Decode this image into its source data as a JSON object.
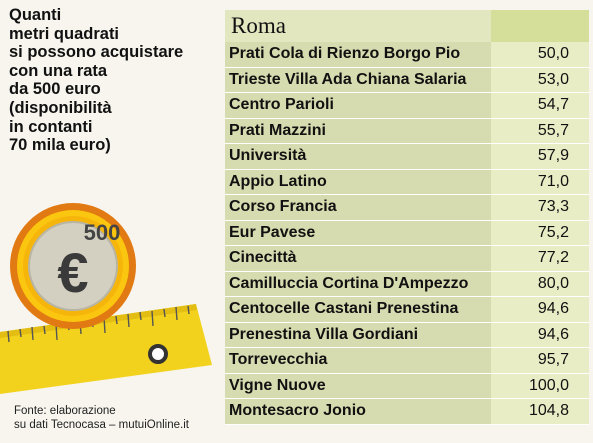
{
  "headline": {
    "lines": [
      "Quanti",
      "metri quadrati",
      "si possono acquistare",
      "con una rata",
      "da 500 euro",
      "(disponibilità",
      "in contanti",
      "70 mila euro)"
    ]
  },
  "coin": {
    "value": "500",
    "symbol": "€",
    "colors": {
      "rim": "#e27a14",
      "face": "#fbc60f",
      "center": "#d3d0c2"
    }
  },
  "source": {
    "lines": [
      "Fonte: elaborazione",
      "su dati Tecnocasa – mutuiOnline.it"
    ]
  },
  "chart_data": {
    "type": "table",
    "title": "Roma",
    "categories": [
      "Prati Cola di Rienzo Borgo Pio",
      "Trieste Villa Ada Chiana Salaria",
      "Centro Parioli",
      "Prati Mazzini",
      "Università",
      "Appio Latino",
      "Corso Francia",
      "Eur Pavese",
      "Cinecittà",
      "Camilluccia Cortina D'Ampezzo",
      "Centocelle Castani Prenestina",
      "Prenestina Villa Gordiani",
      "Torrevecchia",
      "Vigne Nuove",
      "Montesacro Jonio"
    ],
    "values": [
      50.0,
      53.0,
      54.7,
      55.7,
      57.9,
      71.0,
      73.3,
      75.2,
      77.2,
      80.0,
      94.6,
      94.6,
      95.7,
      100.0,
      104.8
    ],
    "value_labels": [
      "50,0",
      "53,0",
      "54,7",
      "55,7",
      "57,9",
      "71,0",
      "73,3",
      "75,2",
      "77,2",
      "80,0",
      "94,6",
      "94,6",
      "95,7",
      "100,0",
      "104,8"
    ]
  }
}
